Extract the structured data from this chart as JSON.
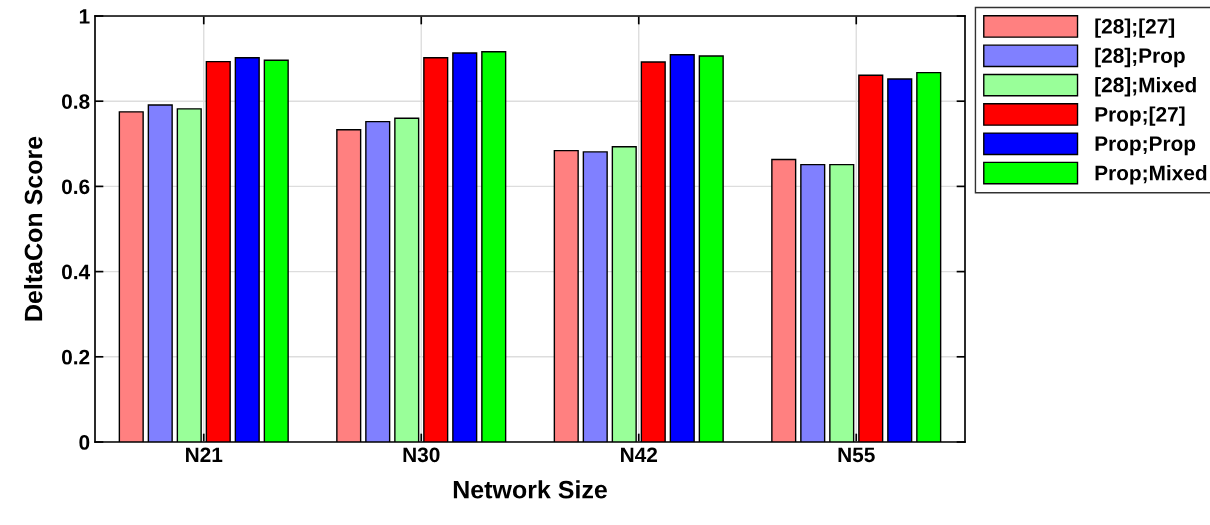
{
  "chart_data": {
    "type": "bar",
    "xlabel": "Network Size",
    "ylabel": "DeltaCon Score",
    "categories": [
      "N21",
      "N30",
      "N42",
      "N55"
    ],
    "series": [
      {
        "name": "[28];[27]",
        "color": "#ff8080",
        "values": [
          0.775,
          0.733,
          0.684,
          0.663
        ]
      },
      {
        "name": "[28];Prop",
        "color": "#8080ff",
        "values": [
          0.791,
          0.752,
          0.681,
          0.651
        ]
      },
      {
        "name": "[28];Mixed",
        "color": "#99ff99",
        "values": [
          0.782,
          0.76,
          0.693,
          0.651
        ]
      },
      {
        "name": "Prop;[27]",
        "color": "#ff0000",
        "values": [
          0.893,
          0.902,
          0.892,
          0.861
        ]
      },
      {
        "name": "Prop;Prop",
        "color": "#0000ff",
        "values": [
          0.902,
          0.913,
          0.909,
          0.852
        ]
      },
      {
        "name": "Prop;Mixed",
        "color": "#00ff00",
        "values": [
          0.896,
          0.916,
          0.906,
          0.867
        ]
      }
    ],
    "ylim": [
      0,
      1
    ],
    "yticks": [
      0,
      0.2,
      0.4,
      0.6,
      0.8,
      1
    ],
    "grid": true,
    "legend": "top right"
  }
}
